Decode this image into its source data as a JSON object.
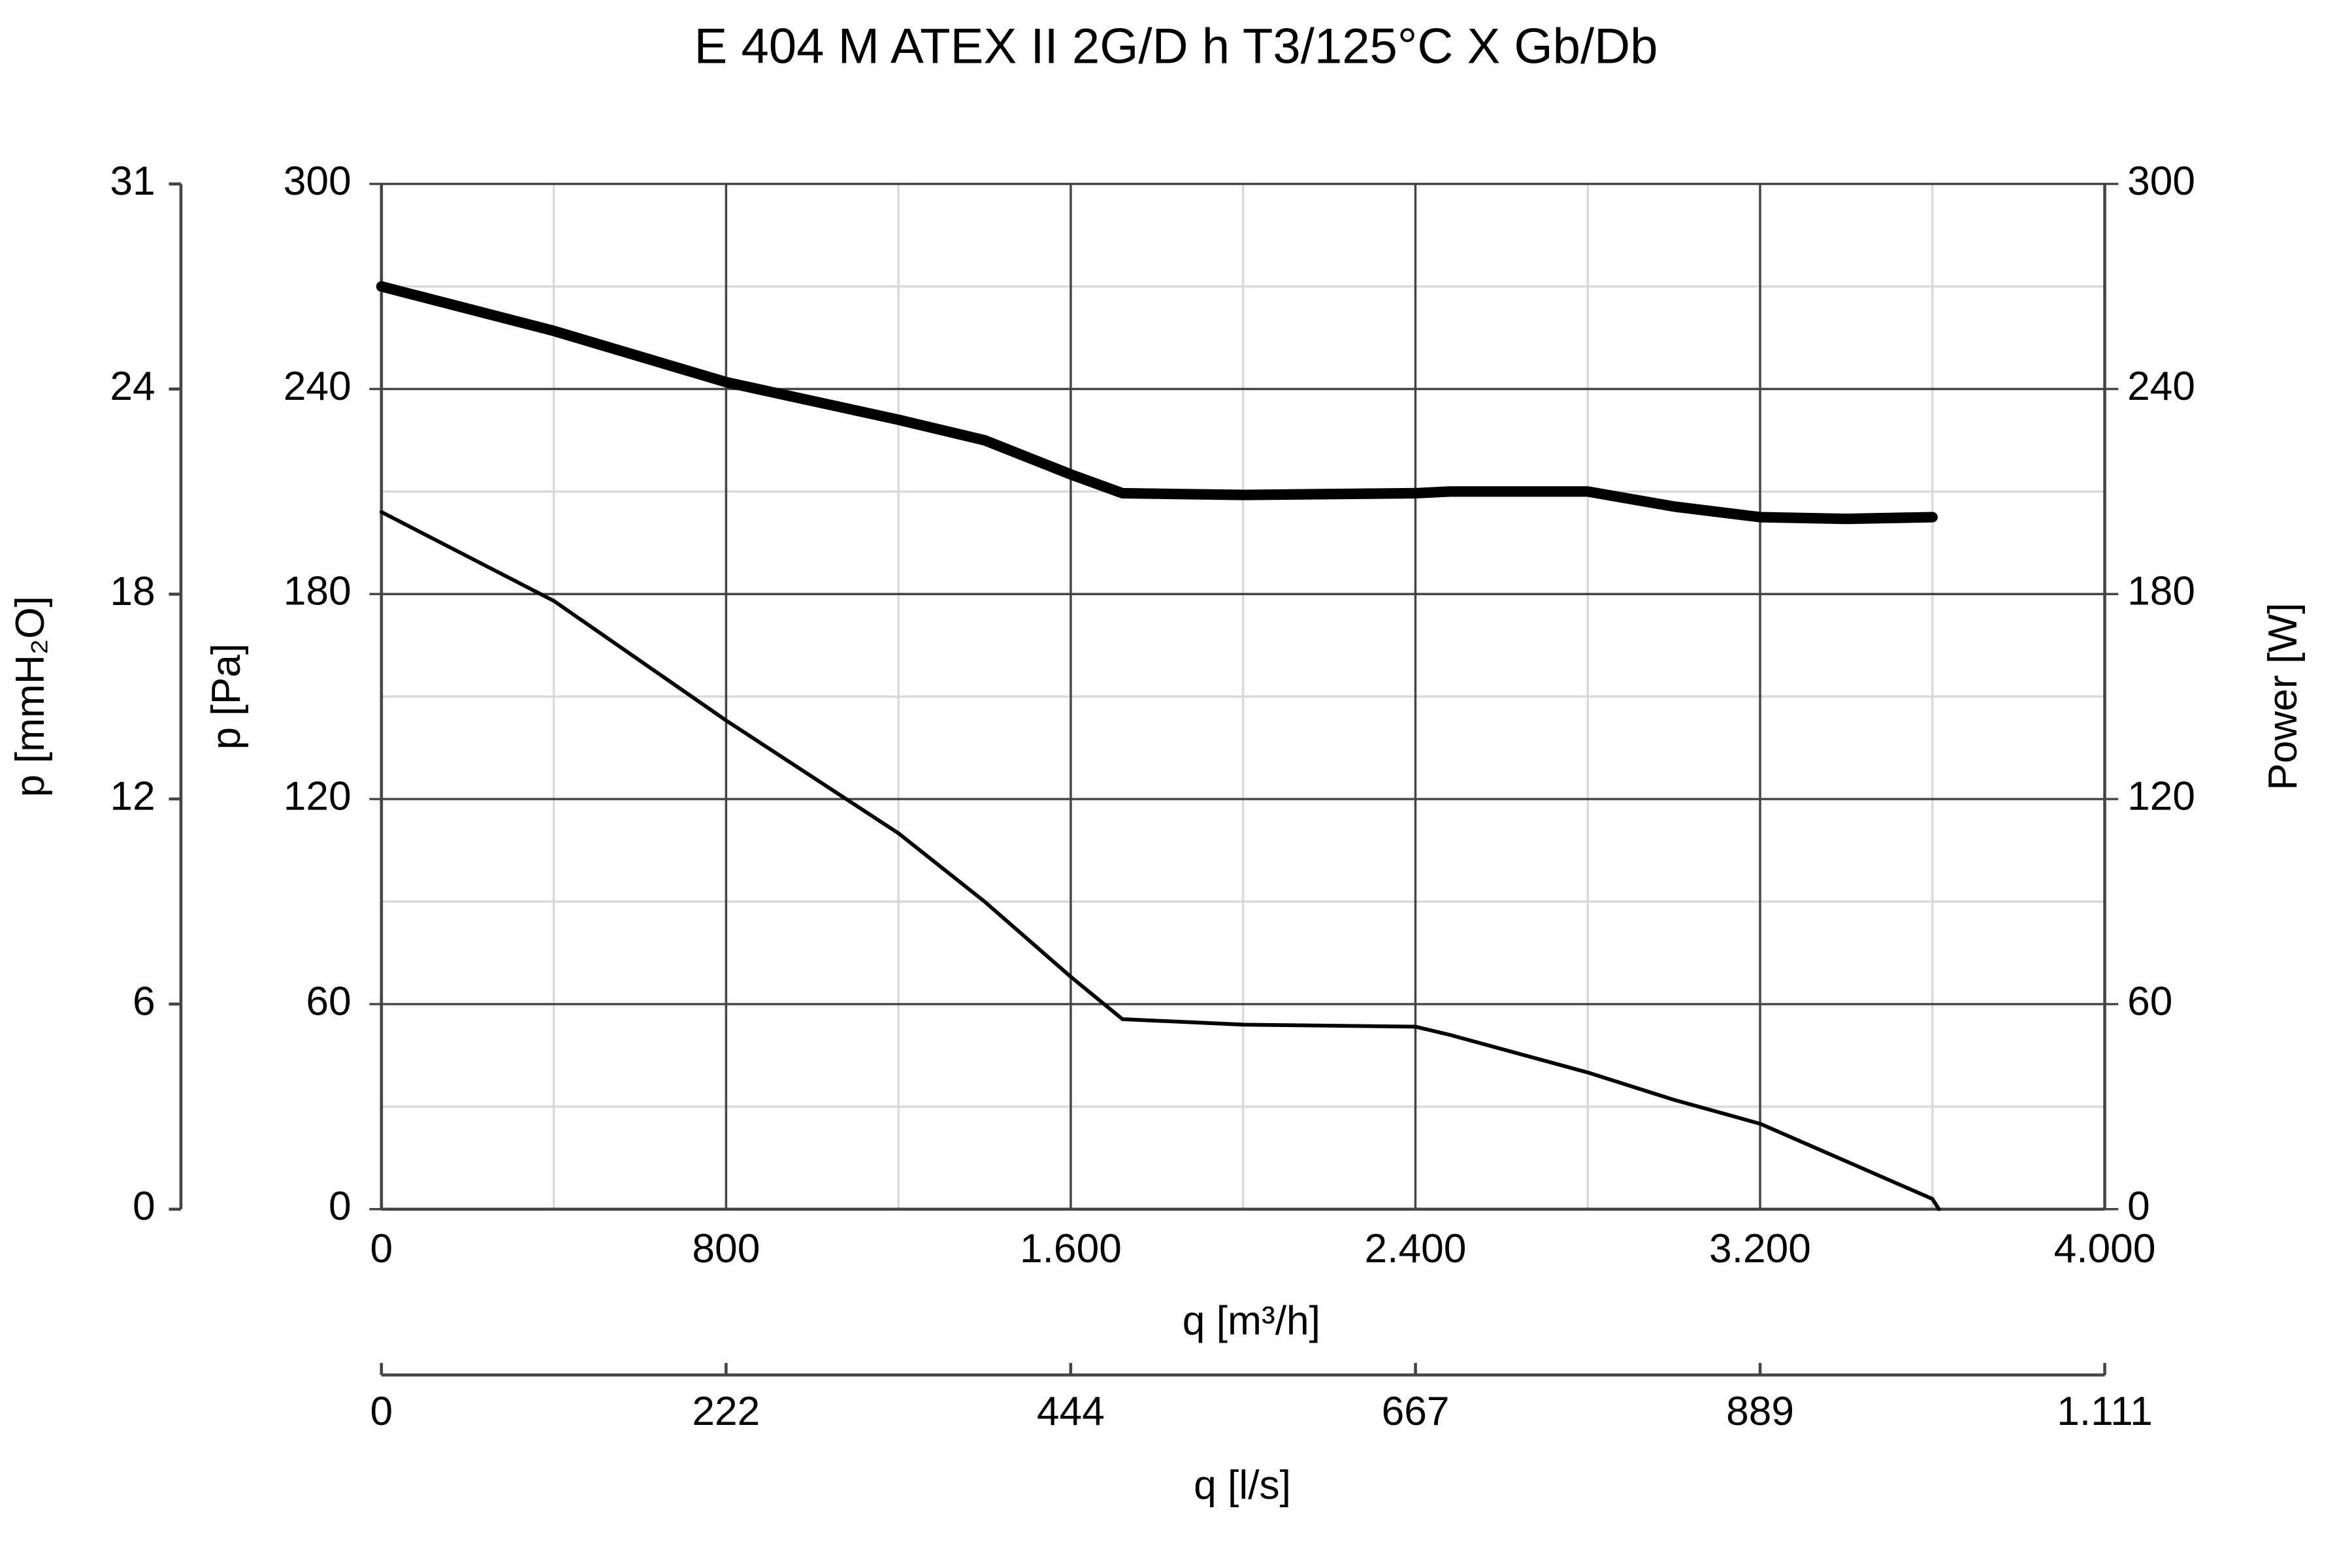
{
  "chart_data": {
    "type": "line",
    "title": "E 404 M ATEX II 2G/D h T3/125°C X Gb/Db",
    "xlabel": "q [m³/h]",
    "ylabel": "p [Pa]",
    "y2label": "Power [W]",
    "y3label": "p [mmH₂O]",
    "x2label": "q [l/s]",
    "x": [
      0,
      400,
      800,
      1200,
      1400,
      1600,
      1720,
      2000,
      2400,
      2480,
      2800,
      3000,
      3200,
      3400,
      3600,
      3615
    ],
    "series": [
      {
        "color": "#000000",
        "line_width": 2.5,
        "values": [
          204,
          178,
          143,
          110,
          90,
          68,
          55.6,
          54,
          53.4,
          51,
          40,
          32,
          25,
          14,
          3,
          0
        ]
      },
      {
        "color": "#000000",
        "line_width": 7,
        "axis": "y2",
        "values": [
          270,
          257,
          242,
          231,
          225,
          215,
          209.5,
          209,
          209.5,
          210,
          210,
          205.6,
          202.5,
          202,
          202.5,
          null
        ]
      }
    ],
    "xlim": [
      0,
      4000
    ],
    "xticks": [
      0,
      800,
      {
        "value": 1600,
        "label": "1.600"
      },
      {
        "value": 2400,
        "label": "2.400"
      },
      {
        "value": 3200,
        "label": "3.200"
      },
      {
        "value": 4000,
        "label": "4.000"
      }
    ],
    "xminorticks": [
      400,
      1200,
      2000,
      2800,
      3600
    ],
    "ylim": [
      0,
      300
    ],
    "yticks": [
      0,
      60,
      120,
      180,
      240,
      300
    ],
    "yminorticks": [
      30,
      90,
      150,
      210,
      270
    ],
    "y2lim": [
      0,
      300
    ],
    "y2ticks": [
      0,
      60,
      120,
      180,
      240,
      300
    ],
    "y3lim": [
      0,
      30.59
    ],
    "y3ticks": [
      0,
      {
        "value": 6.12,
        "label": "6"
      },
      {
        "value": 12.24,
        "label": "12"
      },
      {
        "value": 18.35,
        "label": "18"
      },
      {
        "value": 24.47,
        "label": "24"
      },
      {
        "value": 30.59,
        "label": "31"
      }
    ],
    "x2lim": [
      0,
      1111.1
    ],
    "x2ticks": [
      0,
      {
        "value": 222.2,
        "label": "222"
      },
      {
        "value": 444.4,
        "label": "444"
      },
      {
        "value": 666.7,
        "label": "667"
      },
      {
        "value": 888.9,
        "label": "889"
      },
      {
        "value": 1111.1,
        "label": "1.111"
      }
    ],
    "grid": true
  }
}
